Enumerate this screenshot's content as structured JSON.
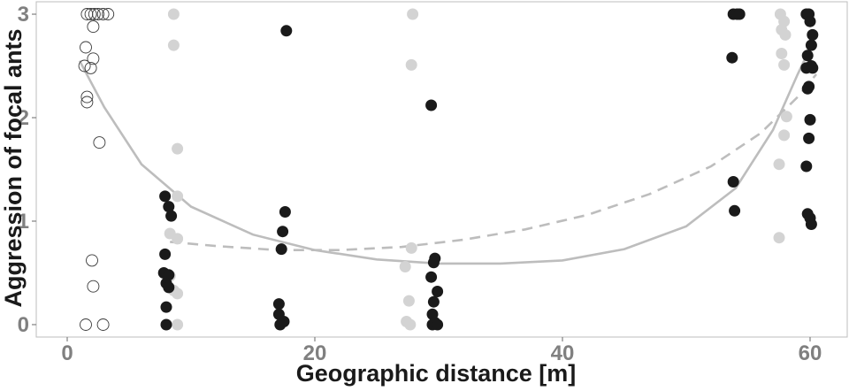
{
  "chart_data": {
    "type": "scatter",
    "title": "",
    "xlabel": "Geographic distance [m]",
    "ylabel": "Aggression of focal ants",
    "xlim": [
      -2.5,
      63
    ],
    "ylim": [
      -0.12,
      3.12
    ],
    "x_ticks": [
      0,
      20,
      40,
      60
    ],
    "y_ticks": [
      0,
      1,
      2,
      3
    ],
    "grid": false,
    "legend": "none",
    "colors": {
      "open_points": "#3a3a3a",
      "grey_points": "#d3d3d3",
      "black_points": "#1a1a1a",
      "fit_lines": "#bdbdbd"
    },
    "series": [
      {
        "style": "open-circle",
        "points": [
          [
            1.6,
            3.0
          ],
          [
            1.9,
            3.0
          ],
          [
            2.2,
            3.0
          ],
          [
            2.5,
            3.0
          ],
          [
            2.9,
            3.0
          ],
          [
            3.3,
            3.0
          ],
          [
            2.1,
            2.88
          ],
          [
            1.5,
            2.68
          ],
          [
            2.1,
            2.57
          ],
          [
            1.4,
            2.5
          ],
          [
            1.9,
            2.48
          ],
          [
            1.6,
            2.2
          ],
          [
            1.6,
            2.15
          ],
          [
            2.6,
            1.76
          ],
          [
            2.0,
            0.62
          ],
          [
            2.1,
            0.37
          ],
          [
            1.5,
            0.0
          ],
          [
            2.9,
            0.0
          ]
        ]
      },
      {
        "style": "grey-filled",
        "points": [
          [
            8.6,
            3.0
          ],
          [
            8.6,
            2.7
          ],
          [
            8.9,
            1.7
          ],
          [
            8.9,
            1.24
          ],
          [
            8.3,
            0.88
          ],
          [
            8.9,
            0.83
          ],
          [
            8.3,
            0.47
          ],
          [
            8.6,
            0.33
          ],
          [
            8.9,
            0.3
          ],
          [
            8.9,
            0.0
          ],
          [
            27.9,
            3.0
          ],
          [
            27.8,
            2.51
          ],
          [
            27.8,
            0.74
          ],
          [
            27.3,
            0.56
          ],
          [
            27.6,
            0.23
          ],
          [
            27.4,
            0.03
          ],
          [
            27.7,
            0.0
          ],
          [
            57.6,
            3.0
          ],
          [
            57.9,
            2.93
          ],
          [
            57.7,
            2.85
          ],
          [
            58.0,
            2.8
          ],
          [
            57.7,
            2.62
          ],
          [
            57.9,
            2.51
          ],
          [
            58.1,
            2.01
          ],
          [
            57.9,
            1.83
          ],
          [
            57.5,
            1.55
          ],
          [
            57.5,
            0.84
          ]
        ]
      },
      {
        "style": "black-filled",
        "points": [
          [
            7.9,
            1.24
          ],
          [
            8.2,
            1.14
          ],
          [
            8.4,
            1.05
          ],
          [
            7.9,
            0.68
          ],
          [
            7.8,
            0.5
          ],
          [
            8.2,
            0.48
          ],
          [
            8.0,
            0.4
          ],
          [
            8.2,
            0.36
          ],
          [
            8.0,
            0.17
          ],
          [
            8.0,
            0.0
          ],
          [
            17.7,
            2.84
          ],
          [
            17.6,
            1.09
          ],
          [
            17.4,
            0.9
          ],
          [
            17.3,
            0.73
          ],
          [
            17.1,
            0.2
          ],
          [
            17.1,
            0.1
          ],
          [
            17.5,
            0.03
          ],
          [
            17.2,
            0.0
          ],
          [
            29.4,
            2.12
          ],
          [
            29.7,
            0.64
          ],
          [
            29.6,
            0.6
          ],
          [
            29.4,
            0.46
          ],
          [
            29.9,
            0.32
          ],
          [
            29.6,
            0.22
          ],
          [
            29.5,
            0.1
          ],
          [
            29.7,
            0.02
          ],
          [
            29.5,
            0.0
          ],
          [
            29.9,
            0.0
          ],
          [
            53.8,
            3.0
          ],
          [
            54.1,
            3.0
          ],
          [
            54.3,
            3.0
          ],
          [
            53.7,
            2.58
          ],
          [
            53.8,
            1.38
          ],
          [
            53.9,
            1.1
          ],
          [
            59.7,
            3.0
          ],
          [
            59.9,
            3.0
          ],
          [
            60.0,
            2.93
          ],
          [
            60.2,
            2.8
          ],
          [
            60.1,
            2.7
          ],
          [
            59.8,
            2.6
          ],
          [
            60.1,
            2.5
          ],
          [
            59.7,
            2.48
          ],
          [
            60.2,
            2.48
          ],
          [
            59.9,
            2.3
          ],
          [
            59.8,
            2.28
          ],
          [
            60.0,
            1.98
          ],
          [
            59.9,
            1.8
          ],
          [
            59.7,
            1.53
          ],
          [
            59.8,
            1.07
          ],
          [
            60.0,
            1.03
          ],
          [
            60.1,
            0.97
          ]
        ]
      }
    ],
    "curves": [
      {
        "style": "solid",
        "points": [
          [
            1.0,
            2.55
          ],
          [
            3,
            2.1
          ],
          [
            6,
            1.55
          ],
          [
            10,
            1.14
          ],
          [
            15,
            0.87
          ],
          [
            20,
            0.72
          ],
          [
            25,
            0.63
          ],
          [
            30,
            0.59
          ],
          [
            35,
            0.59
          ],
          [
            40,
            0.62
          ],
          [
            45,
            0.73
          ],
          [
            50,
            0.95
          ],
          [
            54,
            1.32
          ],
          [
            57,
            1.88
          ],
          [
            59,
            2.42
          ],
          [
            60.5,
            2.8
          ]
        ]
      },
      {
        "style": "dashed",
        "points": [
          [
            8.3,
            0.8
          ],
          [
            12,
            0.76
          ],
          [
            17,
            0.72
          ],
          [
            22,
            0.72
          ],
          [
            27,
            0.75
          ],
          [
            32,
            0.82
          ],
          [
            37,
            0.92
          ],
          [
            42,
            1.06
          ],
          [
            47,
            1.26
          ],
          [
            52,
            1.53
          ],
          [
            56,
            1.85
          ],
          [
            59,
            2.2
          ],
          [
            60.5,
            2.42
          ]
        ]
      }
    ]
  }
}
